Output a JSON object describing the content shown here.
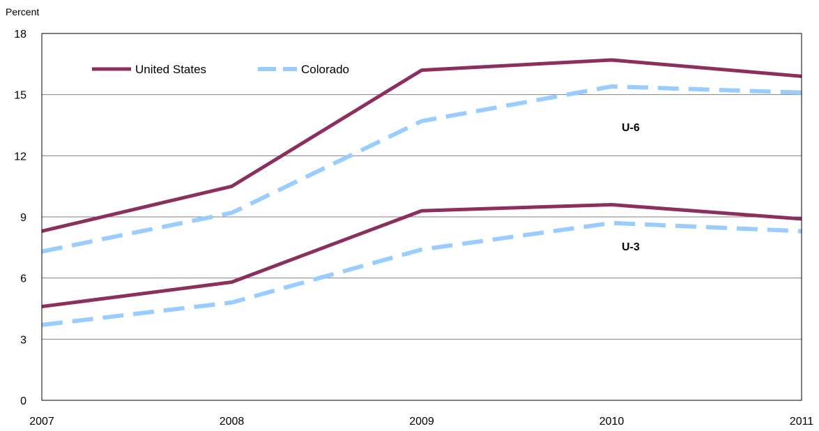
{
  "chart_data": {
    "type": "line",
    "ylabel": "Percent",
    "xlabel": "",
    "title": "",
    "x": [
      "2007",
      "2008",
      "2009",
      "2010",
      "2011"
    ],
    "ylim": [
      0,
      18
    ],
    "yticks": [
      0,
      3,
      6,
      9,
      12,
      15,
      18
    ],
    "grid": "horizontal",
    "legend_position": "top-left",
    "series": [
      {
        "name": "United States",
        "group": "U-6",
        "style": "solid",
        "color": "#8B2F5E",
        "values": [
          8.3,
          10.5,
          16.2,
          16.7,
          15.9
        ]
      },
      {
        "name": "Colorado",
        "group": "U-6",
        "style": "dashed",
        "color": "#99CCFF",
        "values": [
          7.3,
          9.2,
          13.7,
          15.4,
          15.1
        ]
      },
      {
        "name": "United States",
        "group": "U-3",
        "style": "solid",
        "color": "#8B2F5E",
        "values": [
          4.6,
          5.8,
          9.3,
          9.6,
          8.9
        ]
      },
      {
        "name": "Colorado",
        "group": "U-3",
        "style": "dashed",
        "color": "#99CCFF",
        "values": [
          3.7,
          4.8,
          7.4,
          8.7,
          8.3
        ]
      }
    ],
    "annotations": [
      "U-6",
      "U-3"
    ],
    "legend": [
      {
        "label": "United States",
        "style": "solid",
        "color": "#8B2F5E"
      },
      {
        "label": "Colorado",
        "style": "dashed",
        "color": "#99CCFF"
      }
    ]
  }
}
